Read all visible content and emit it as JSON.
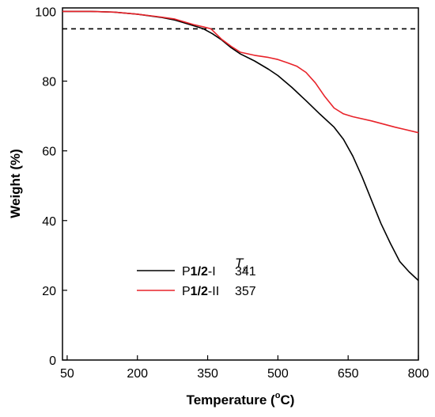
{
  "chart_data": {
    "type": "line",
    "xlabel_main": "Temperature (",
    "xlabel_sup": "o",
    "xlabel_end": "C)",
    "ylabel": "Weight (%)",
    "xlim": [
      40,
      800
    ],
    "ylim": [
      0,
      101
    ],
    "x_ticks": [
      50,
      200,
      350,
      500,
      650,
      800
    ],
    "y_ticks": [
      0,
      20,
      40,
      60,
      80,
      100
    ],
    "reference_line": {
      "y": 95,
      "style": "dashed",
      "color": "#000000"
    },
    "legend_header_main": "T",
    "legend_header_sub": "d",
    "series": [
      {
        "name_prefix": "P",
        "name_bold": "1/2",
        "name_suffix": "-I",
        "td_value": "341",
        "color": "#000000",
        "x": [
          40,
          100,
          150,
          200,
          250,
          280,
          300,
          320,
          341,
          360,
          380,
          400,
          420,
          450,
          480,
          500,
          530,
          560,
          590,
          620,
          640,
          660,
          680,
          700,
          720,
          740,
          760,
          780,
          800
        ],
        "y": [
          100,
          100,
          99.8,
          99.2,
          98.3,
          97.5,
          96.7,
          95.9,
          95.0,
          93.6,
          91.8,
          89.6,
          87.8,
          85.8,
          83.4,
          81.6,
          78.2,
          74.4,
          70.5,
          66.8,
          63.3,
          58.5,
          52.5,
          45.8,
          39.2,
          33.5,
          28.3,
          25.3,
          22.8
        ]
      },
      {
        "name_prefix": "P",
        "name_bold": "1/2",
        "name_suffix": "-II",
        "td_value": "357",
        "color": "#e8232a",
        "x": [
          40,
          100,
          150,
          200,
          250,
          280,
          300,
          320,
          340,
          357,
          380,
          400,
          420,
          450,
          480,
          500,
          520,
          540,
          560,
          580,
          600,
          620,
          640,
          660,
          700,
          750,
          800
        ],
        "y": [
          100,
          100,
          99.8,
          99.2,
          98.4,
          97.8,
          97.0,
          96.2,
          95.6,
          95.0,
          92.0,
          90.0,
          88.3,
          87.4,
          86.8,
          86.2,
          85.3,
          84.3,
          82.5,
          79.5,
          75.6,
          72.3,
          70.6,
          69.8,
          68.6,
          66.8,
          65.2
        ]
      }
    ]
  }
}
